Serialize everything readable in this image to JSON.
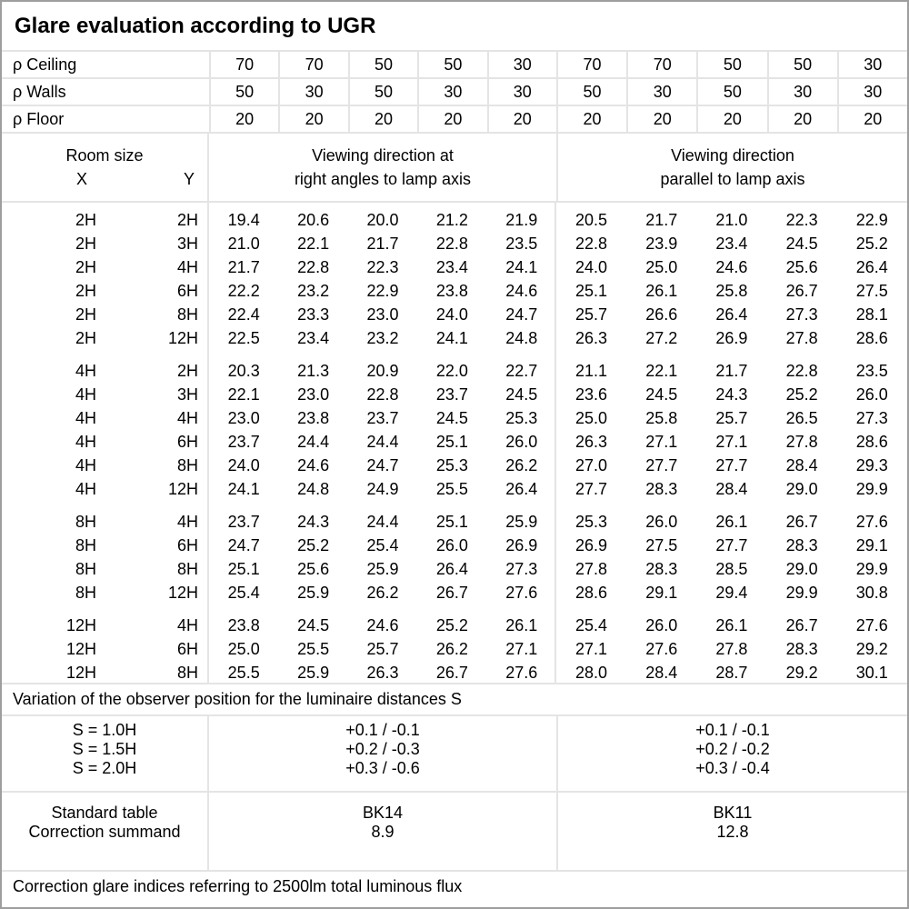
{
  "title": "Glare evaluation according to UGR",
  "reflectance": {
    "rows": [
      {
        "label": "ρ Ceiling",
        "values": [
          "70",
          "70",
          "50",
          "50",
          "30",
          "70",
          "70",
          "50",
          "50",
          "30"
        ]
      },
      {
        "label": "ρ Walls",
        "values": [
          "50",
          "30",
          "50",
          "30",
          "30",
          "50",
          "30",
          "50",
          "30",
          "30"
        ]
      },
      {
        "label": "ρ Floor",
        "values": [
          "20",
          "20",
          "20",
          "20",
          "20",
          "20",
          "20",
          "20",
          "20",
          "20"
        ]
      }
    ]
  },
  "header": {
    "room_size": "Room size",
    "x": "X",
    "y": "Y",
    "group1": [
      "Viewing direction at",
      "right angles to lamp axis"
    ],
    "group2": [
      "Viewing direction",
      "parallel to lamp axis"
    ]
  },
  "table": {
    "groups": [
      {
        "rows": [
          {
            "x": "2H",
            "y": "2H",
            "right_angles": [
              "19.4",
              "20.6",
              "20.0",
              "21.2",
              "21.9"
            ],
            "parallel": [
              "20.5",
              "21.7",
              "21.0",
              "22.3",
              "22.9"
            ]
          },
          {
            "x": "2H",
            "y": "3H",
            "right_angles": [
              "21.0",
              "22.1",
              "21.7",
              "22.8",
              "23.5"
            ],
            "parallel": [
              "22.8",
              "23.9",
              "23.4",
              "24.5",
              "25.2"
            ]
          },
          {
            "x": "2H",
            "y": "4H",
            "right_angles": [
              "21.7",
              "22.8",
              "22.3",
              "23.4",
              "24.1"
            ],
            "parallel": [
              "24.0",
              "25.0",
              "24.6",
              "25.6",
              "26.4"
            ]
          },
          {
            "x": "2H",
            "y": "6H",
            "right_angles": [
              "22.2",
              "23.2",
              "22.9",
              "23.8",
              "24.6"
            ],
            "parallel": [
              "25.1",
              "26.1",
              "25.8",
              "26.7",
              "27.5"
            ]
          },
          {
            "x": "2H",
            "y": "8H",
            "right_angles": [
              "22.4",
              "23.3",
              "23.0",
              "24.0",
              "24.7"
            ],
            "parallel": [
              "25.7",
              "26.6",
              "26.4",
              "27.3",
              "28.1"
            ]
          },
          {
            "x": "2H",
            "y": "12H",
            "right_angles": [
              "22.5",
              "23.4",
              "23.2",
              "24.1",
              "24.8"
            ],
            "parallel": [
              "26.3",
              "27.2",
              "26.9",
              "27.8",
              "28.6"
            ]
          }
        ]
      },
      {
        "rows": [
          {
            "x": "4H",
            "y": "2H",
            "right_angles": [
              "20.3",
              "21.3",
              "20.9",
              "22.0",
              "22.7"
            ],
            "parallel": [
              "21.1",
              "22.1",
              "21.7",
              "22.8",
              "23.5"
            ]
          },
          {
            "x": "4H",
            "y": "3H",
            "right_angles": [
              "22.1",
              "23.0",
              "22.8",
              "23.7",
              "24.5"
            ],
            "parallel": [
              "23.6",
              "24.5",
              "24.3",
              "25.2",
              "26.0"
            ]
          },
          {
            "x": "4H",
            "y": "4H",
            "right_angles": [
              "23.0",
              "23.8",
              "23.7",
              "24.5",
              "25.3"
            ],
            "parallel": [
              "25.0",
              "25.8",
              "25.7",
              "26.5",
              "27.3"
            ]
          },
          {
            "x": "4H",
            "y": "6H",
            "right_angles": [
              "23.7",
              "24.4",
              "24.4",
              "25.1",
              "26.0"
            ],
            "parallel": [
              "26.3",
              "27.1",
              "27.1",
              "27.8",
              "28.6"
            ]
          },
          {
            "x": "4H",
            "y": "8H",
            "right_angles": [
              "24.0",
              "24.6",
              "24.7",
              "25.3",
              "26.2"
            ],
            "parallel": [
              "27.0",
              "27.7",
              "27.7",
              "28.4",
              "29.3"
            ]
          },
          {
            "x": "4H",
            "y": "12H",
            "right_angles": [
              "24.1",
              "24.8",
              "24.9",
              "25.5",
              "26.4"
            ],
            "parallel": [
              "27.7",
              "28.3",
              "28.4",
              "29.0",
              "29.9"
            ]
          }
        ]
      },
      {
        "rows": [
          {
            "x": "8H",
            "y": "4H",
            "right_angles": [
              "23.7",
              "24.3",
              "24.4",
              "25.1",
              "25.9"
            ],
            "parallel": [
              "25.3",
              "26.0",
              "26.1",
              "26.7",
              "27.6"
            ]
          },
          {
            "x": "8H",
            "y": "6H",
            "right_angles": [
              "24.7",
              "25.2",
              "25.4",
              "26.0",
              "26.9"
            ],
            "parallel": [
              "26.9",
              "27.5",
              "27.7",
              "28.3",
              "29.1"
            ]
          },
          {
            "x": "8H",
            "y": "8H",
            "right_angles": [
              "25.1",
              "25.6",
              "25.9",
              "26.4",
              "27.3"
            ],
            "parallel": [
              "27.8",
              "28.3",
              "28.5",
              "29.0",
              "29.9"
            ]
          },
          {
            "x": "8H",
            "y": "12H",
            "right_angles": [
              "25.4",
              "25.9",
              "26.2",
              "26.7",
              "27.6"
            ],
            "parallel": [
              "28.6",
              "29.1",
              "29.4",
              "29.9",
              "30.8"
            ]
          }
        ]
      },
      {
        "rows": [
          {
            "x": "12H",
            "y": "4H",
            "right_angles": [
              "23.8",
              "24.5",
              "24.6",
              "25.2",
              "26.1"
            ],
            "parallel": [
              "25.4",
              "26.0",
              "26.1",
              "26.7",
              "27.6"
            ]
          },
          {
            "x": "12H",
            "y": "6H",
            "right_angles": [
              "25.0",
              "25.5",
              "25.7",
              "26.2",
              "27.1"
            ],
            "parallel": [
              "27.1",
              "27.6",
              "27.8",
              "28.3",
              "29.2"
            ]
          },
          {
            "x": "12H",
            "y": "8H",
            "right_angles": [
              "25.5",
              "25.9",
              "26.3",
              "26.7",
              "27.6"
            ],
            "parallel": [
              "28.0",
              "28.4",
              "28.7",
              "29.2",
              "30.1"
            ]
          }
        ]
      }
    ]
  },
  "variation": {
    "title": "Variation of the observer position for the luminaire distances S",
    "rows": [
      {
        "label": "S = 1.0H",
        "right_angles": "+0.1 / -0.1",
        "parallel": "+0.1 / -0.1"
      },
      {
        "label": "S = 1.5H",
        "right_angles": "+0.2 / -0.3",
        "parallel": "+0.2 / -0.2"
      },
      {
        "label": "S = 2.0H",
        "right_angles": "+0.3 / -0.6",
        "parallel": "+0.3 / -0.4"
      }
    ]
  },
  "summary": {
    "rows": [
      {
        "label": "Standard table",
        "right_angles": "BK14",
        "parallel": "BK11"
      },
      {
        "label": "Correction summand",
        "right_angles": "8.9",
        "parallel": "12.8"
      }
    ]
  },
  "footer": "Correction glare indices referring to 2500lm total luminous flux",
  "colors": {
    "grid_line": "#e4e4e4",
    "outer_border": "#9e9e9e",
    "text": "#000000",
    "background": "#ffffff"
  }
}
